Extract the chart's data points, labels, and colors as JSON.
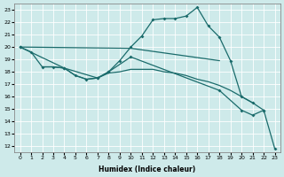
{
  "xlabel": "Humidex (Indice chaleur)",
  "bg_color": "#ceeaea",
  "grid_color": "#ffffff",
  "line_color": "#1a6b6b",
  "xlim": [
    -0.5,
    23.5
  ],
  "ylim": [
    11.5,
    23.5
  ],
  "xticks": [
    0,
    1,
    2,
    3,
    4,
    5,
    6,
    7,
    8,
    9,
    10,
    11,
    12,
    13,
    14,
    15,
    16,
    17,
    18,
    19,
    20,
    21,
    22,
    23
  ],
  "yticks": [
    12,
    13,
    14,
    15,
    16,
    17,
    18,
    19,
    20,
    21,
    22,
    23
  ],
  "series": [
    {
      "x": [
        0,
        1,
        2,
        3,
        4,
        5,
        6,
        7,
        8,
        9,
        10,
        11,
        12,
        13,
        14,
        15,
        16,
        17,
        18,
        19,
        20,
        21,
        22
      ],
      "y": [
        20.0,
        19.6,
        18.4,
        18.4,
        18.3,
        17.7,
        17.4,
        17.5,
        18.0,
        18.9,
        20.0,
        20.9,
        22.2,
        22.3,
        22.3,
        22.5,
        23.2,
        21.7,
        20.8,
        18.9,
        16.0,
        15.5,
        14.9
      ]
    },
    {
      "x": [
        0,
        10,
        18
      ],
      "y": [
        20.0,
        19.9,
        18.9
      ]
    },
    {
      "x": [
        2,
        3,
        4,
        5,
        6,
        7,
        8,
        9,
        10,
        11,
        12,
        13,
        14,
        15,
        16,
        17,
        18,
        19,
        20,
        21
      ],
      "y": [
        18.4,
        18.4,
        18.3,
        17.7,
        17.4,
        17.5,
        17.9,
        18.0,
        18.2,
        18.2,
        18.2,
        18.0,
        17.9,
        17.7,
        17.4,
        17.2,
        16.9,
        16.5,
        16.0,
        15.5
      ]
    },
    {
      "x": [
        0,
        4,
        7,
        8,
        10,
        18,
        20,
        21,
        22,
        23
      ],
      "y": [
        20.0,
        18.3,
        17.5,
        18.0,
        19.2,
        16.5,
        14.9,
        14.5,
        14.9,
        11.8
      ]
    }
  ]
}
